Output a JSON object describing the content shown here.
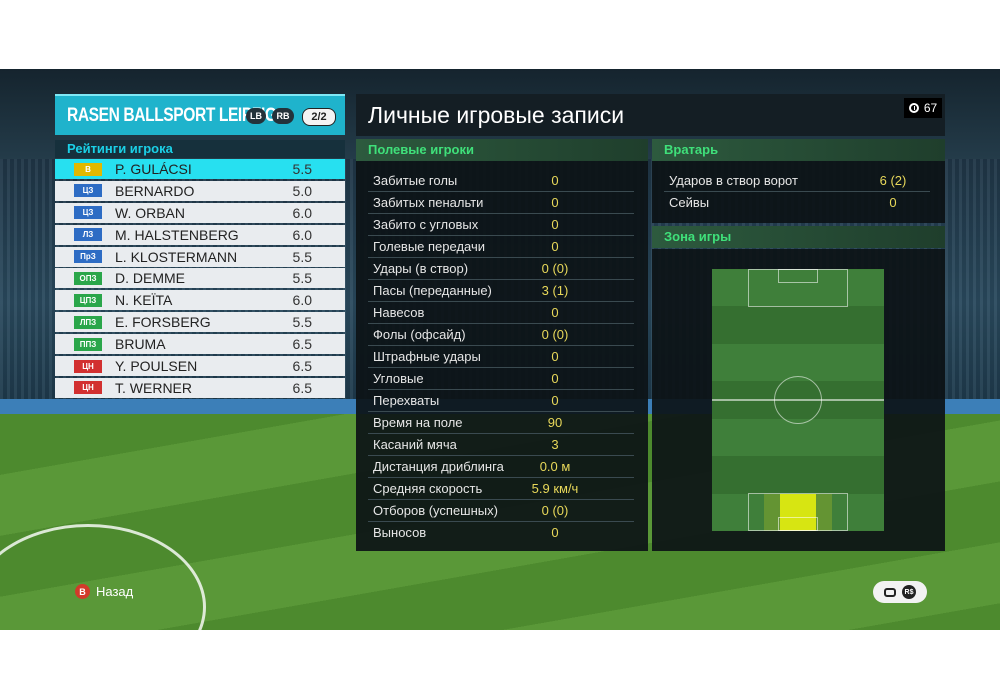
{
  "team": {
    "name": "RASEN BALLSPORT LEIPZIG",
    "lb_label": "LB",
    "rb_label": "RB",
    "page": "2/2"
  },
  "ratings_title": "Рейтинги игрока",
  "players": [
    {
      "pos": "В",
      "pos_color": "#e2b800",
      "name": "P. GULÁCSI",
      "rating": "5.5",
      "selected": true
    },
    {
      "pos": "ЦЗ",
      "pos_color": "#2d6cc4",
      "name": "BERNARDO",
      "rating": "5.0"
    },
    {
      "pos": "ЦЗ",
      "pos_color": "#2d6cc4",
      "name": "W. ORBAN",
      "rating": "6.0"
    },
    {
      "pos": "ЛЗ",
      "pos_color": "#2d6cc4",
      "name": "M. HALSTENBERG",
      "rating": "6.0"
    },
    {
      "pos": "ПрЗ",
      "pos_color": "#2d6cc4",
      "name": "L. KLOSTERMANN",
      "rating": "5.5"
    },
    {
      "pos": "ОПЗ",
      "pos_color": "#2aa64a",
      "name": "D. DEMME",
      "rating": "5.5"
    },
    {
      "pos": "ЦПЗ",
      "pos_color": "#2aa64a",
      "name": "N. KEÏTA",
      "rating": "6.0"
    },
    {
      "pos": "ЛПЗ",
      "pos_color": "#2aa64a",
      "name": "E. FORSBERG",
      "rating": "5.5"
    },
    {
      "pos": "ППЗ",
      "pos_color": "#2aa64a",
      "name": "BRUMA",
      "rating": "6.5"
    },
    {
      "pos": "ЦН",
      "pos_color": "#d23030",
      "name": "Y. POULSEN",
      "rating": "6.5"
    },
    {
      "pos": "ЦН",
      "pos_color": "#d23030",
      "name": "T. WERNER",
      "rating": "6.5"
    }
  ],
  "main_title": "Личные игровые записи",
  "timer": "67",
  "field_players": {
    "heading": "Полевые игроки",
    "stats": [
      {
        "label": "Забитые голы",
        "value": "0"
      },
      {
        "label": "Забитых пенальти",
        "value": "0"
      },
      {
        "label": "Забито с угловых",
        "value": "0"
      },
      {
        "label": "Голевые передачи",
        "value": "0"
      },
      {
        "label": "Удары (в створ)",
        "value": "0 (0)"
      },
      {
        "label": "Пасы (переданные)",
        "value": "3 (1)"
      },
      {
        "label": "Навесов",
        "value": "0"
      },
      {
        "label": "Фолы (офсайд)",
        "value": "0 (0)"
      },
      {
        "label": "Штрафные удары",
        "value": "0"
      },
      {
        "label": "Угловые",
        "value": "0"
      },
      {
        "label": "Перехваты",
        "value": "0"
      },
      {
        "label": "Время на поле",
        "value": "90"
      },
      {
        "label": "Касаний мяча",
        "value": "3"
      },
      {
        "label": "Дистанция дриблинга",
        "value": "0.0 м"
      },
      {
        "label": "Средняя скорость",
        "value": "5.9 км/ч"
      },
      {
        "label": "Отборов (успешных)",
        "value": "0 (0)"
      },
      {
        "label": "Выносов",
        "value": "0"
      }
    ]
  },
  "goalkeeper": {
    "heading": "Вратарь",
    "stats": [
      {
        "label": "Ударов в створ ворот",
        "value": "6 (2)"
      },
      {
        "label": "Сейвы",
        "value": "0"
      }
    ]
  },
  "play_zone": {
    "heading": "Зона игры"
  },
  "back_label": "Назад",
  "back_button_glyph": "B",
  "rs_glyph": "R$",
  "colors": {
    "accent": "#1fb3cc",
    "section_green": "#3fe07a",
    "value_yellow": "#e8d85a"
  }
}
